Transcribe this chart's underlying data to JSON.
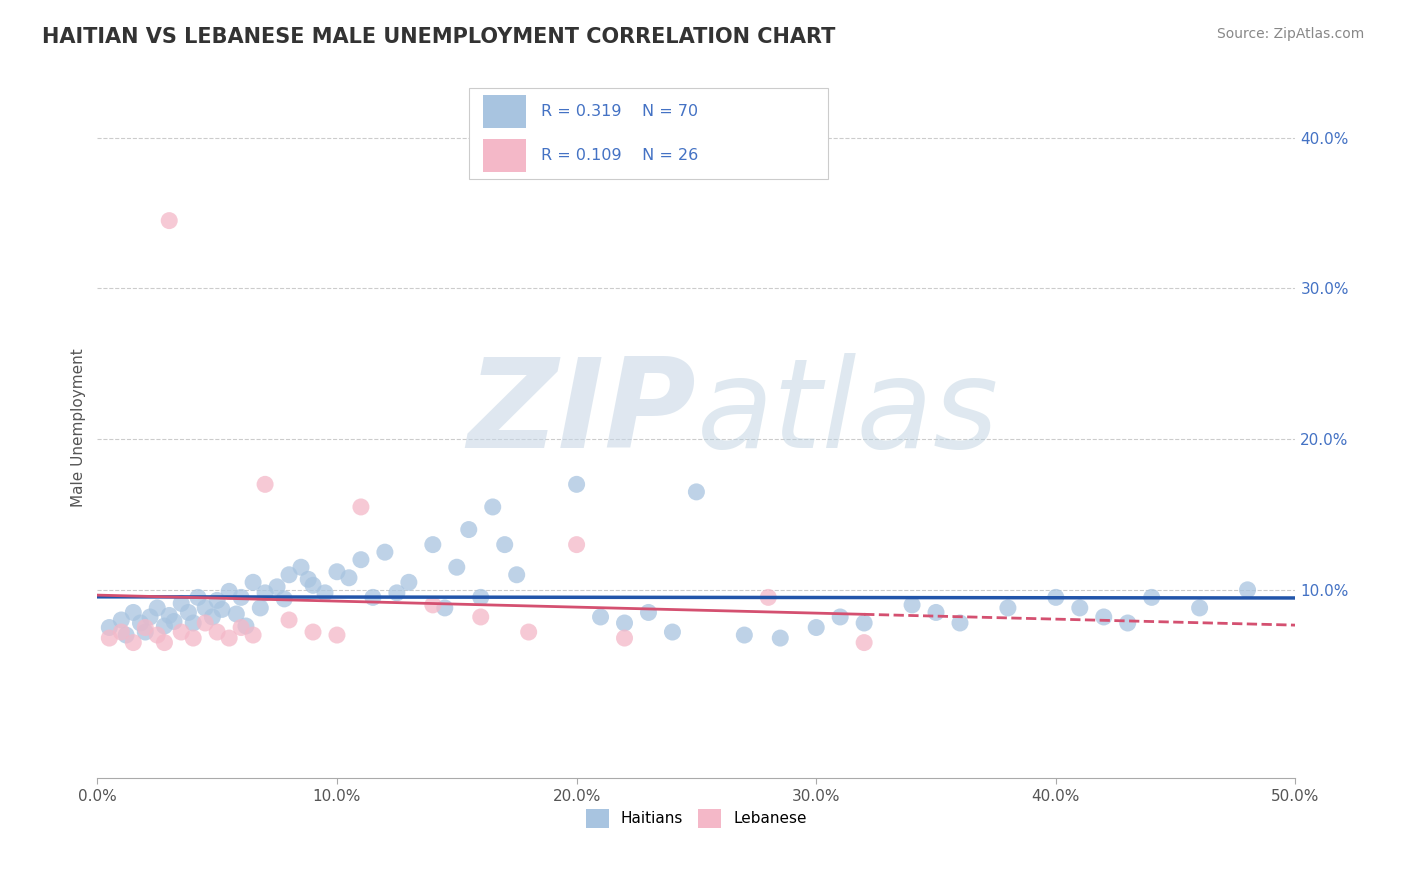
{
  "title": "HAITIAN VS LEBANESE MALE UNEMPLOYMENT CORRELATION CHART",
  "source": "Source: ZipAtlas.com",
  "ylabel": "Male Unemployment",
  "xlim": [
    0.0,
    0.5
  ],
  "ylim": [
    -0.025,
    0.44
  ],
  "haitian_color": "#a8c4e0",
  "lebanese_color": "#f4b8c8",
  "haitian_line_color": "#2255aa",
  "lebanese_line_color": "#d45070",
  "lebanese_line_dashed_color": "#d45070",
  "watermark_color": "#c8d8e8",
  "title_color": "#333333",
  "source_color": "#888888",
  "right_tick_color": "#4472c4",
  "haitian_x": [
    0.005,
    0.01,
    0.012,
    0.015,
    0.018,
    0.02,
    0.022,
    0.025,
    0.028,
    0.03,
    0.032,
    0.035,
    0.038,
    0.04,
    0.042,
    0.045,
    0.048,
    0.05,
    0.052,
    0.055,
    0.058,
    0.06,
    0.062,
    0.065,
    0.068,
    0.07,
    0.075,
    0.078,
    0.08,
    0.085,
    0.088,
    0.09,
    0.095,
    0.1,
    0.105,
    0.11,
    0.115,
    0.12,
    0.125,
    0.13,
    0.14,
    0.145,
    0.15,
    0.155,
    0.16,
    0.165,
    0.17,
    0.175,
    0.2,
    0.21,
    0.22,
    0.23,
    0.24,
    0.25,
    0.27,
    0.285,
    0.3,
    0.31,
    0.32,
    0.34,
    0.35,
    0.36,
    0.38,
    0.4,
    0.41,
    0.42,
    0.43,
    0.44,
    0.46,
    0.48
  ],
  "haitian_y": [
    0.075,
    0.08,
    0.07,
    0.085,
    0.078,
    0.072,
    0.082,
    0.088,
    0.076,
    0.083,
    0.079,
    0.091,
    0.085,
    0.078,
    0.095,
    0.088,
    0.082,
    0.093,
    0.087,
    0.099,
    0.084,
    0.095,
    0.076,
    0.105,
    0.088,
    0.098,
    0.102,
    0.094,
    0.11,
    0.115,
    0.107,
    0.103,
    0.098,
    0.112,
    0.108,
    0.12,
    0.095,
    0.125,
    0.098,
    0.105,
    0.13,
    0.088,
    0.115,
    0.14,
    0.095,
    0.155,
    0.13,
    0.11,
    0.17,
    0.082,
    0.078,
    0.085,
    0.072,
    0.165,
    0.07,
    0.068,
    0.075,
    0.082,
    0.078,
    0.09,
    0.085,
    0.078,
    0.088,
    0.095,
    0.088,
    0.082,
    0.078,
    0.095,
    0.088,
    0.1
  ],
  "lebanese_x": [
    0.005,
    0.01,
    0.015,
    0.02,
    0.025,
    0.028,
    0.03,
    0.035,
    0.04,
    0.045,
    0.05,
    0.055,
    0.06,
    0.065,
    0.07,
    0.08,
    0.09,
    0.1,
    0.11,
    0.14,
    0.16,
    0.18,
    0.2,
    0.22,
    0.28,
    0.32
  ],
  "lebanese_y": [
    0.068,
    0.072,
    0.065,
    0.075,
    0.07,
    0.065,
    0.345,
    0.072,
    0.068,
    0.078,
    0.072,
    0.068,
    0.075,
    0.07,
    0.17,
    0.08,
    0.072,
    0.07,
    0.155,
    0.09,
    0.082,
    0.072,
    0.13,
    0.068,
    0.095,
    0.065
  ]
}
